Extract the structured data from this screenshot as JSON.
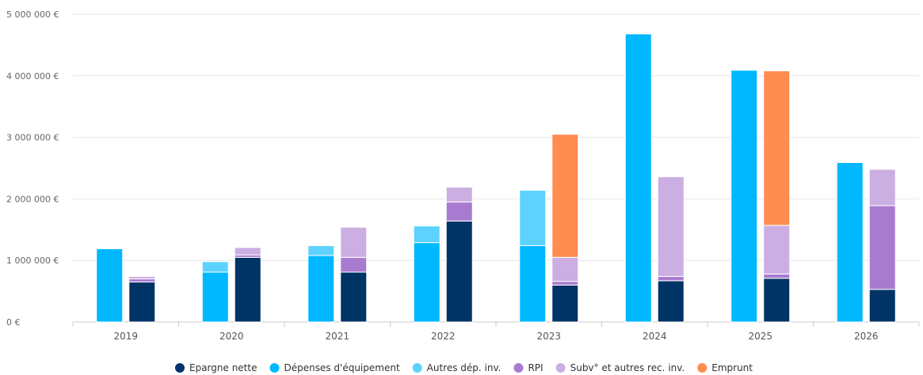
{
  "chart_data": {
    "type": "bar",
    "stacked": true,
    "grouped": true,
    "categories": [
      "2019",
      "2020",
      "2021",
      "2022",
      "2023",
      "2024",
      "2025",
      "2026"
    ],
    "y_ticks": [
      "0 €",
      "1 000 000 €",
      "2 000 000 €",
      "3 000 000 €",
      "4 000 000 €",
      "5 000 000 €"
    ],
    "ylim": [
      0,
      5000000
    ],
    "grid": true,
    "legend_position": "bottom",
    "stacks": [
      {
        "name": "dépenses",
        "series": [
          "Dépenses d'équipement",
          "Autres dép. inv."
        ]
      },
      {
        "name": "recettes",
        "series": [
          "Epargne nette",
          "RPI",
          "Subv° et autres rec. inv.",
          "Emprunt"
        ]
      }
    ],
    "series": [
      {
        "name": "Epargne nette",
        "color": "#003366",
        "stack": "recettes",
        "values": [
          650000,
          1050000,
          810000,
          1640000,
          600000,
          670000,
          710000,
          530000
        ]
      },
      {
        "name": "Dépenses d'équipement",
        "color": "#00b8ff",
        "stack": "dépenses",
        "values": [
          1190000,
          810000,
          1080000,
          1290000,
          1240000,
          4680000,
          4090000,
          2590000
        ]
      },
      {
        "name": "Autres dép. inv.",
        "color": "#5dd2ff",
        "stack": "dépenses",
        "values": [
          0,
          170000,
          160000,
          270000,
          900000,
          0,
          0,
          0
        ]
      },
      {
        "name": "RPI",
        "color": "#a97bd0",
        "stack": "recettes",
        "values": [
          50000,
          40000,
          240000,
          310000,
          60000,
          70000,
          70000,
          1360000
        ]
      },
      {
        "name": "Subv° et autres rec. inv.",
        "color": "#cbaee2",
        "stack": "recettes",
        "values": [
          40000,
          120000,
          490000,
          240000,
          390000,
          1620000,
          790000,
          590000
        ]
      },
      {
        "name": "Emprunt",
        "color": "#ff8c50",
        "stack": "recettes",
        "values": [
          0,
          0,
          0,
          0,
          2000000,
          0,
          2510000,
          0
        ]
      }
    ]
  }
}
